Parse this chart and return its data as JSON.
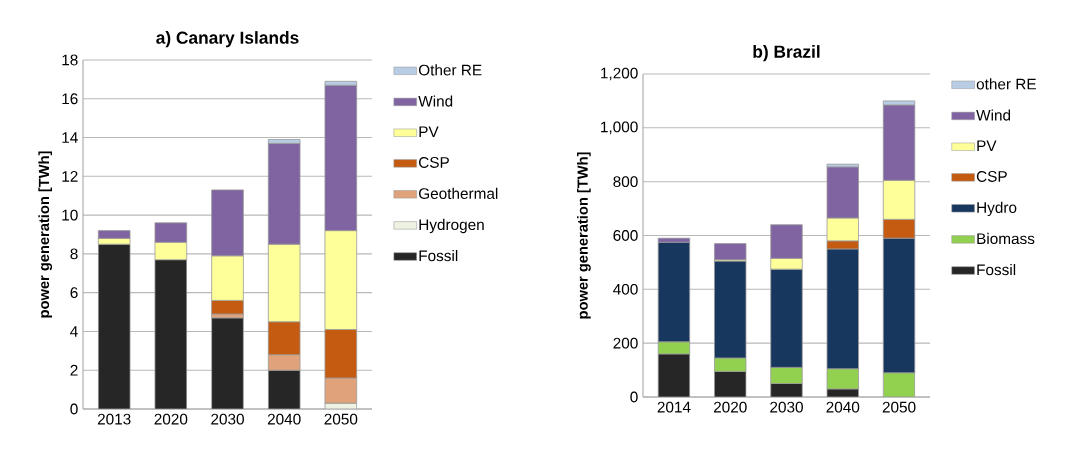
{
  "chart_data": [
    {
      "type": "bar",
      "title": "a) Canary Islands",
      "ylabel": "power generation [TWh]",
      "stacked": true,
      "grid": "y",
      "legend": "right",
      "categories": [
        "2013",
        "2020",
        "2030",
        "2040",
        "2050"
      ],
      "ylim": [
        0,
        18
      ],
      "yticks": [
        0,
        2,
        4,
        6,
        8,
        10,
        12,
        14,
        16,
        18
      ],
      "series": [
        {
          "name": "Fossil",
          "color": "#262626",
          "values": [
            8.5,
            7.7,
            4.7,
            2.0,
            null
          ]
        },
        {
          "name": "Hydrogen",
          "color": "#eef2e2",
          "values": [
            null,
            null,
            null,
            null,
            0.3
          ]
        },
        {
          "name": "Geothermal",
          "color": "#dfa27a",
          "values": [
            null,
            null,
            0.2,
            0.8,
            1.3
          ]
        },
        {
          "name": "CSP",
          "color": "#c55a11",
          "values": [
            null,
            null,
            0.7,
            1.7,
            2.5
          ]
        },
        {
          "name": "PV",
          "color": "#ffff99",
          "values": [
            0.3,
            0.9,
            2.3,
            4.0,
            5.1
          ]
        },
        {
          "name": "Wind",
          "color": "#8064a2",
          "values": [
            0.4,
            1.0,
            3.4,
            5.2,
            7.5
          ]
        },
        {
          "name": "Other RE",
          "color": "#b8cce4",
          "values": [
            null,
            null,
            null,
            0.2,
            0.2
          ]
        }
      ]
    },
    {
      "type": "bar",
      "title": "b) Brazil",
      "ylabel": "power generation [TWh]",
      "stacked": true,
      "grid": "y",
      "legend": "right",
      "categories": [
        "2014",
        "2020",
        "2030",
        "2040",
        "2050"
      ],
      "ylim": [
        0,
        1200
      ],
      "yticks": [
        0,
        200,
        400,
        600,
        800,
        {
          "value": 1000,
          "label": "1,000"
        },
        {
          "value": 1200,
          "label": "1,200"
        }
      ],
      "series": [
        {
          "name": "Fossil",
          "color": "#262626",
          "values": [
            160,
            95,
            50,
            30,
            null
          ]
        },
        {
          "name": "Biomass",
          "color": "#92d050",
          "values": [
            45,
            50,
            60,
            75,
            90
          ]
        },
        {
          "name": "Hydro",
          "color": "#17375e",
          "values": [
            370,
            360,
            365,
            445,
            500
          ]
        },
        {
          "name": "CSP",
          "color": "#c55a11",
          "values": [
            null,
            null,
            null,
            30,
            70
          ]
        },
        {
          "name": "PV",
          "color": "#ffff99",
          "values": [
            null,
            5,
            40,
            85,
            145
          ]
        },
        {
          "name": "Wind",
          "color": "#8064a2",
          "values": [
            15,
            60,
            125,
            190,
            280
          ]
        },
        {
          "name": "other RE",
          "color": "#b8cce4",
          "values": [
            null,
            null,
            null,
            10,
            15
          ]
        }
      ]
    }
  ]
}
